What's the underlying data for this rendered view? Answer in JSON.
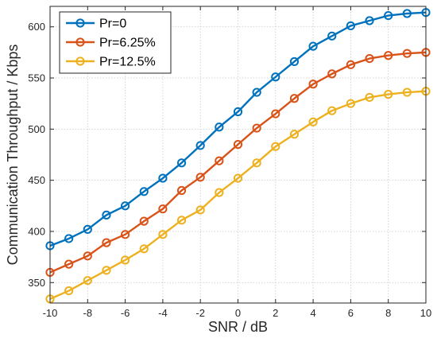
{
  "chart_data": {
    "type": "line",
    "title": "",
    "xlabel": "SNR / dB",
    "ylabel": "Communication Throughput / Kbps",
    "xlim": [
      -10,
      10
    ],
    "ylim": [
      330,
      620
    ],
    "x_ticks": [
      -10,
      -8,
      -6,
      -4,
      -2,
      0,
      2,
      4,
      6,
      8,
      10
    ],
    "y_ticks": [
      350,
      400,
      450,
      500,
      550,
      600
    ],
    "grid": true,
    "legend_position": "top-left",
    "x": [
      -10,
      -9,
      -8,
      -7,
      -6,
      -5,
      -4,
      -3,
      -2,
      -1,
      0,
      1,
      2,
      3,
      4,
      5,
      6,
      7,
      8,
      9,
      10
    ],
    "series": [
      {
        "name": "Pr=0",
        "color": "#0072BD",
        "values": [
          386,
          393,
          402,
          416,
          425,
          439,
          452,
          467,
          484,
          502,
          517,
          536,
          551,
          566,
          581,
          591,
          601,
          606,
          611,
          613,
          614
        ]
      },
      {
        "name": "Pr=6.25%",
        "color": "#D95319",
        "values": [
          360,
          368,
          376,
          389,
          397,
          410,
          422,
          440,
          453,
          469,
          485,
          501,
          515,
          530,
          544,
          554,
          563,
          569,
          572,
          574,
          575
        ]
      },
      {
        "name": "Pr=12.5%",
        "color": "#EDB120",
        "values": [
          334,
          342,
          352,
          362,
          372,
          383,
          397,
          411,
          421,
          438,
          452,
          467,
          483,
          495,
          507,
          518,
          525,
          531,
          534,
          536,
          537
        ]
      }
    ]
  }
}
